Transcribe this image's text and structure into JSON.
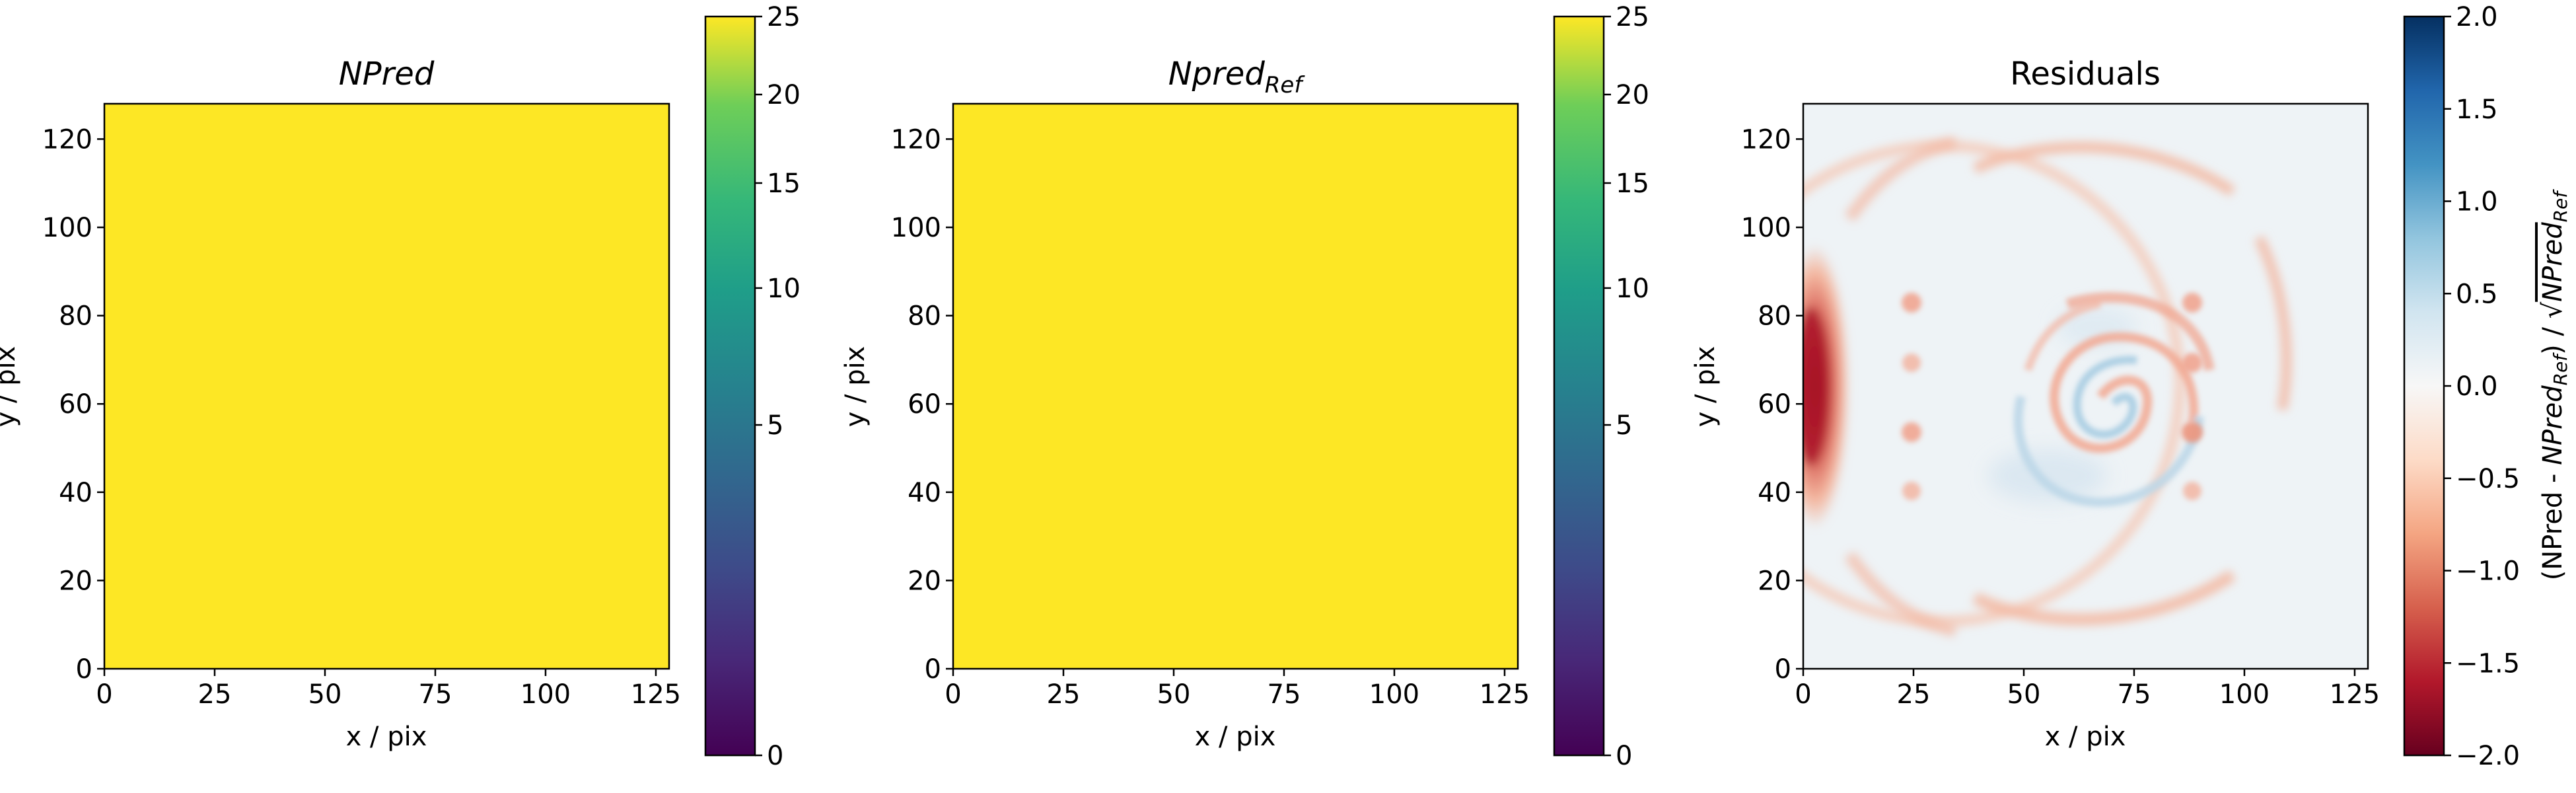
{
  "colors": {
    "viridis_max": "#fde725",
    "diverging_neg": "#67001f",
    "diverging_pos": "#053061",
    "residual_bg": "#eef3f6"
  },
  "chart_data": [
    {
      "type": "heatmap",
      "title": "NPred",
      "title_style": "italic",
      "xlabel": "x / pix",
      "ylabel": "y / pix",
      "xlim": [
        0,
        128
      ],
      "ylim": [
        0,
        128
      ],
      "xticks": [
        "0",
        "25",
        "50",
        "75",
        "100",
        "125"
      ],
      "yticks": [
        "0",
        "20",
        "40",
        "60",
        "80",
        "100",
        "120"
      ],
      "value": 25,
      "colormap": "viridis",
      "colorbar": {
        "scale": "sqrt",
        "range": [
          0,
          25
        ],
        "ticks": [
          "0",
          "5",
          "10",
          "15",
          "20",
          "25"
        ],
        "label": ""
      }
    },
    {
      "type": "heatmap",
      "title": "Npred",
      "title_sub": "Ref",
      "title_style": "italic",
      "xlabel": "x / pix",
      "ylabel": "y / pix",
      "xlim": [
        0,
        128
      ],
      "ylim": [
        0,
        128
      ],
      "xticks": [
        "0",
        "25",
        "50",
        "75",
        "100",
        "125"
      ],
      "yticks": [
        "0",
        "20",
        "40",
        "60",
        "80",
        "100",
        "120"
      ],
      "value": 25,
      "colormap": "viridis",
      "colorbar": {
        "scale": "sqrt",
        "range": [
          0,
          25
        ],
        "ticks": [
          "0",
          "5",
          "10",
          "15",
          "20",
          "25"
        ],
        "label": ""
      }
    },
    {
      "type": "heatmap",
      "title": "Residuals",
      "title_style": "normal",
      "xlabel": "x / pix",
      "ylabel": "y / pix",
      "xlim": [
        0,
        128
      ],
      "ylim": [
        0,
        128
      ],
      "xticks": [
        "0",
        "25",
        "50",
        "75",
        "100",
        "125"
      ],
      "yticks": [
        "0",
        "20",
        "40",
        "60",
        "80",
        "100",
        "120"
      ],
      "colormap": "RdBu",
      "features": {
        "left_crescent": {
          "x": 2,
          "y": 62,
          "value": -2.0
        },
        "outer_ring": {
          "cx": 52,
          "cy": 64,
          "r": 54,
          "value": -0.6
        },
        "inner_spiral": {
          "cx": 56,
          "cy": 66,
          "value": 0.5
        },
        "spots": [
          {
            "x": 24,
            "y": 83
          },
          {
            "x": 24,
            "y": 69
          },
          {
            "x": 24,
            "y": 53
          },
          {
            "x": 24,
            "y": 39
          },
          {
            "x": 88,
            "y": 83
          },
          {
            "x": 88,
            "y": 69
          },
          {
            "x": 88,
            "y": 53
          },
          {
            "x": 88,
            "y": 39
          }
        ]
      },
      "colorbar": {
        "scale": "linear",
        "range": [
          -2.0,
          2.0
        ],
        "ticks": [
          "−2.0",
          "−1.5",
          "−1.0",
          "−0.5",
          "0.0",
          "0.5",
          "1.0",
          "1.5",
          "2.0"
        ],
        "label": "(NPred - NPred_Ref) / √NPred_Ref"
      }
    }
  ]
}
